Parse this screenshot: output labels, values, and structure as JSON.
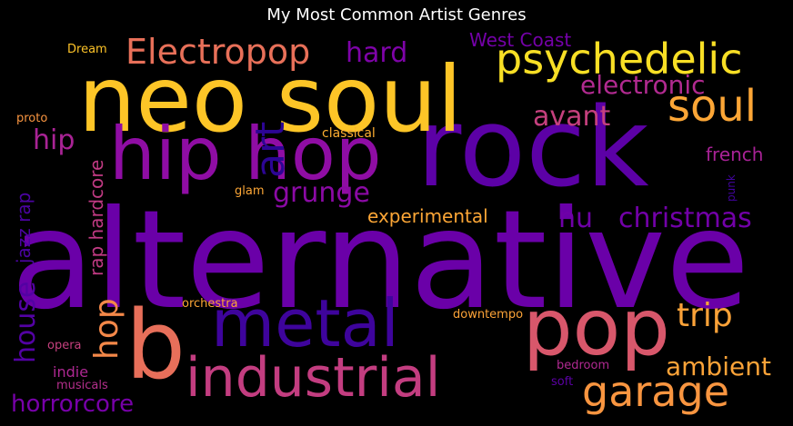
{
  "title": "My Most Common Artist Genres",
  "words": [
    {
      "text": "alternative",
      "color": "#6a00a8"
    },
    {
      "text": "rock",
      "color": "#5c01a6"
    },
    {
      "text": "neo soul",
      "color": "#fdc527"
    },
    {
      "text": "hip hop",
      "color": "#8f0da4"
    },
    {
      "text": "pop",
      "color": "#d8576b"
    },
    {
      "text": "b",
      "color": "#e76f5a"
    },
    {
      "text": "metal",
      "color": "#3e049c"
    },
    {
      "text": "industrial",
      "color": "#c33d80"
    },
    {
      "text": "psychedelic",
      "color": "#f8df25"
    },
    {
      "text": "soul",
      "color": "#fca636"
    },
    {
      "text": "Electropop",
      "color": "#e87059"
    },
    {
      "text": "garage",
      "color": "#f89540"
    },
    {
      "text": "art",
      "color": "#2c0594"
    },
    {
      "text": "electronic",
      "color": "#b12a90"
    },
    {
      "text": "hard",
      "color": "#7e03a8"
    },
    {
      "text": "avant",
      "color": "#c5407e"
    },
    {
      "text": "trip",
      "color": "#fba238"
    },
    {
      "text": "christmas",
      "color": "#7201a8"
    },
    {
      "text": "ambient",
      "color": "#fca338"
    },
    {
      "text": "grunge",
      "color": "#8b0aa5"
    },
    {
      "text": "hip",
      "color": "#a92395"
    },
    {
      "text": "hop",
      "color": "#f48849"
    },
    {
      "text": "horrorcore",
      "color": "#7701a8"
    },
    {
      "text": "house",
      "color": "#5302a3"
    },
    {
      "text": "nu",
      "color": "#6f00a8"
    },
    {
      "text": "experimental",
      "color": "#fca636"
    },
    {
      "text": "rap hardcore",
      "color": "#c03a83"
    },
    {
      "text": "West Coast",
      "color": "#7401a8"
    },
    {
      "text": "jazz rap",
      "color": "#4b03a1"
    },
    {
      "text": "french",
      "color": "#a82296"
    },
    {
      "text": "indie",
      "color": "#ae2892"
    },
    {
      "text": "classical",
      "color": "#fdae32"
    },
    {
      "text": "orchestra",
      "color": "#fca636"
    },
    {
      "text": "downtempo",
      "color": "#fca338"
    },
    {
      "text": "opera",
      "color": "#c5407e"
    },
    {
      "text": "musicals",
      "color": "#b52f8c"
    },
    {
      "text": "bedroom",
      "color": "#b02991"
    },
    {
      "text": "soft",
      "color": "#5c01a6"
    },
    {
      "text": "punk",
      "color": "#41049d"
    },
    {
      "text": "glam",
      "color": "#fca636"
    },
    {
      "text": "proto",
      "color": "#f89540"
    },
    {
      "text": "Dream",
      "color": "#fdc328"
    }
  ]
}
